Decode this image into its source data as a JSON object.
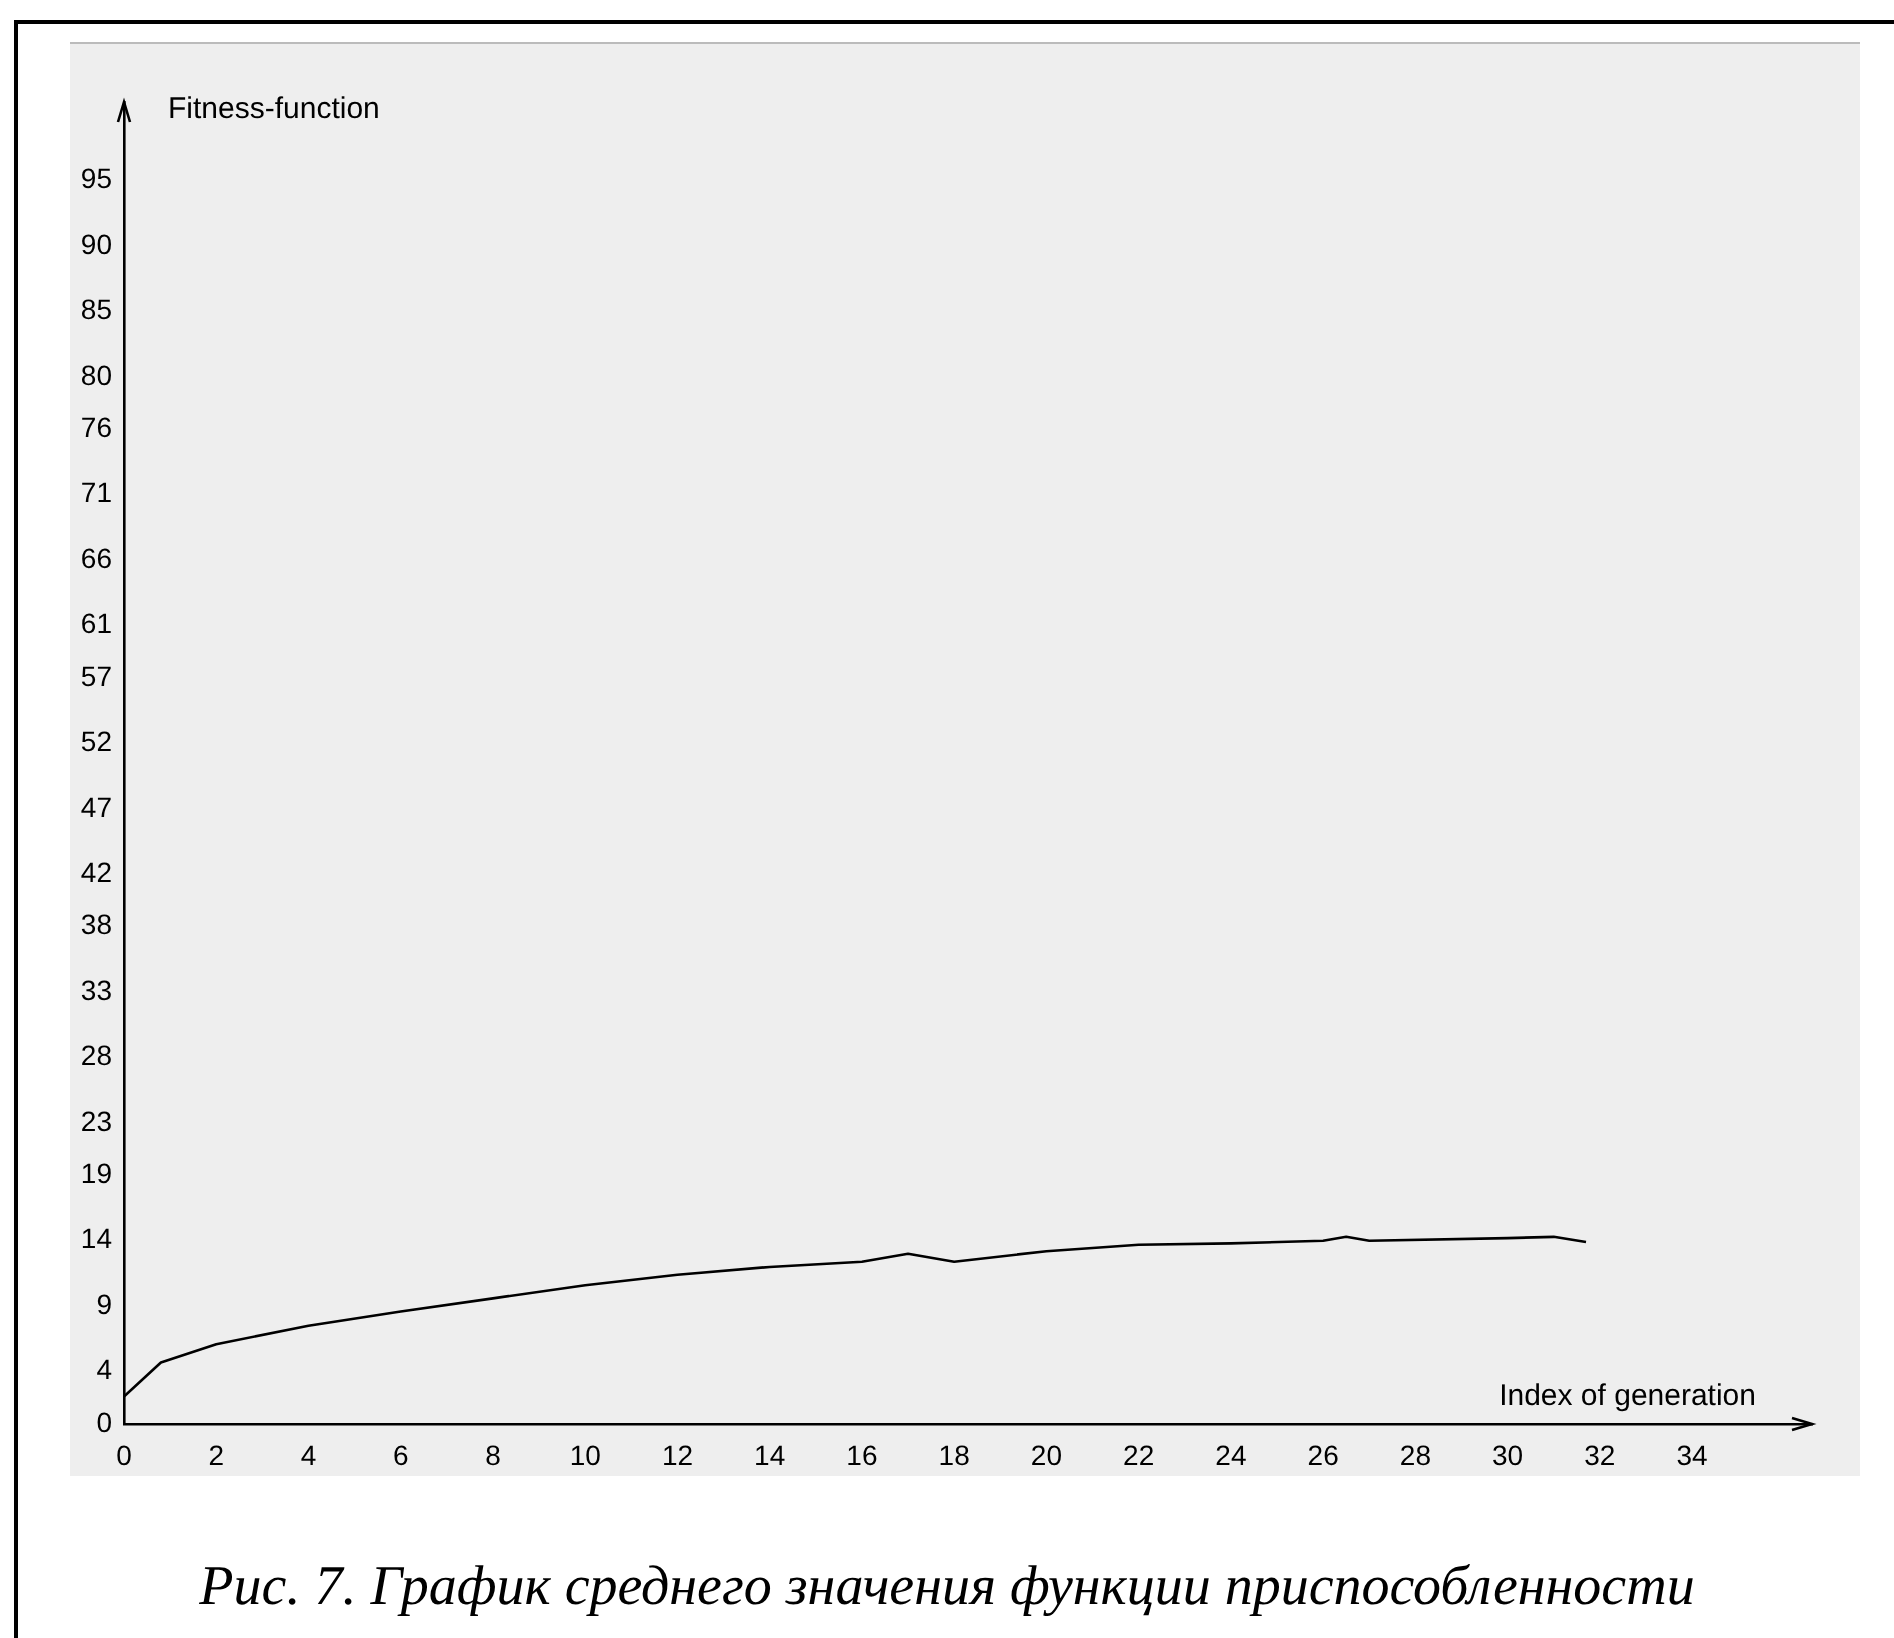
{
  "chart_data": {
    "type": "line",
    "xlabel": "Index of generation",
    "ylabel": "Fitness-function",
    "annotations": [
      "Рис. 7. График среднего значения функции приспособленности"
    ],
    "xlim": [
      0,
      36.6
    ],
    "xticks": [
      0,
      2,
      4,
      6,
      8,
      10,
      12,
      14,
      16,
      18,
      20,
      22,
      24,
      26,
      28,
      30,
      32,
      34
    ],
    "ylim": [
      0,
      101
    ],
    "yticks": [
      0,
      4,
      9,
      14,
      19,
      23,
      28,
      33,
      38,
      42,
      47,
      52,
      57,
      61,
      66,
      71,
      76,
      80,
      85,
      90,
      95
    ],
    "grid": false,
    "legend": false,
    "marker": "none",
    "line_style": "solid",
    "series": [
      {
        "color": "#000000",
        "x": [
          0,
          0.8,
          2,
          4,
          6,
          8,
          10,
          12,
          14,
          16,
          17,
          18,
          20,
          22,
          24,
          26,
          26.5,
          27,
          30,
          31,
          31.7
        ],
        "values": [
          2.1,
          4.7,
          6.1,
          7.5,
          8.6,
          9.6,
          10.6,
          11.4,
          12.0,
          12.4,
          13.0,
          12.4,
          13.2,
          13.7,
          13.8,
          14.0,
          14.3,
          14.0,
          14.2,
          14.3,
          13.9
        ]
      }
    ]
  }
}
